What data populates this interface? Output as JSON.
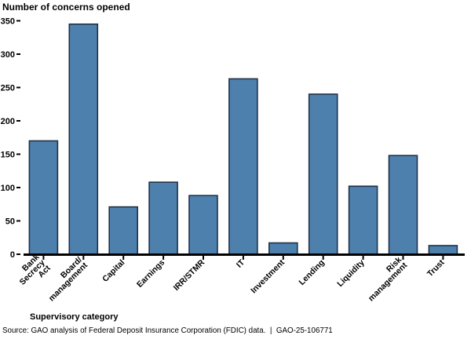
{
  "chart_data": {
    "type": "bar",
    "title": "Number of concerns opened",
    "xlabel": "Supervisory category",
    "categories": [
      "Bank\nSecrecy\nAct",
      "Board/\nmanagement",
      "Capital",
      "Earnings",
      "IRR/STMR",
      "IT",
      "Investment",
      "Lending",
      "Liquidity",
      "Risk\nmanagement",
      "Trust"
    ],
    "values": [
      170,
      345,
      71,
      108,
      88,
      263,
      17,
      240,
      102,
      148,
      13
    ],
    "ylim": [
      0,
      350
    ],
    "yticks": [
      0,
      50,
      100,
      150,
      200,
      250,
      300,
      350
    ],
    "grid": false,
    "legend": null,
    "bar_fill": "#4e80ae",
    "bar_stroke": "#1e3247",
    "axis_color": "#000000"
  },
  "source_line": "Source: GAO analysis of Federal Deposit Insurance Corporation (FDIC) data.  |  GAO-25-106771"
}
